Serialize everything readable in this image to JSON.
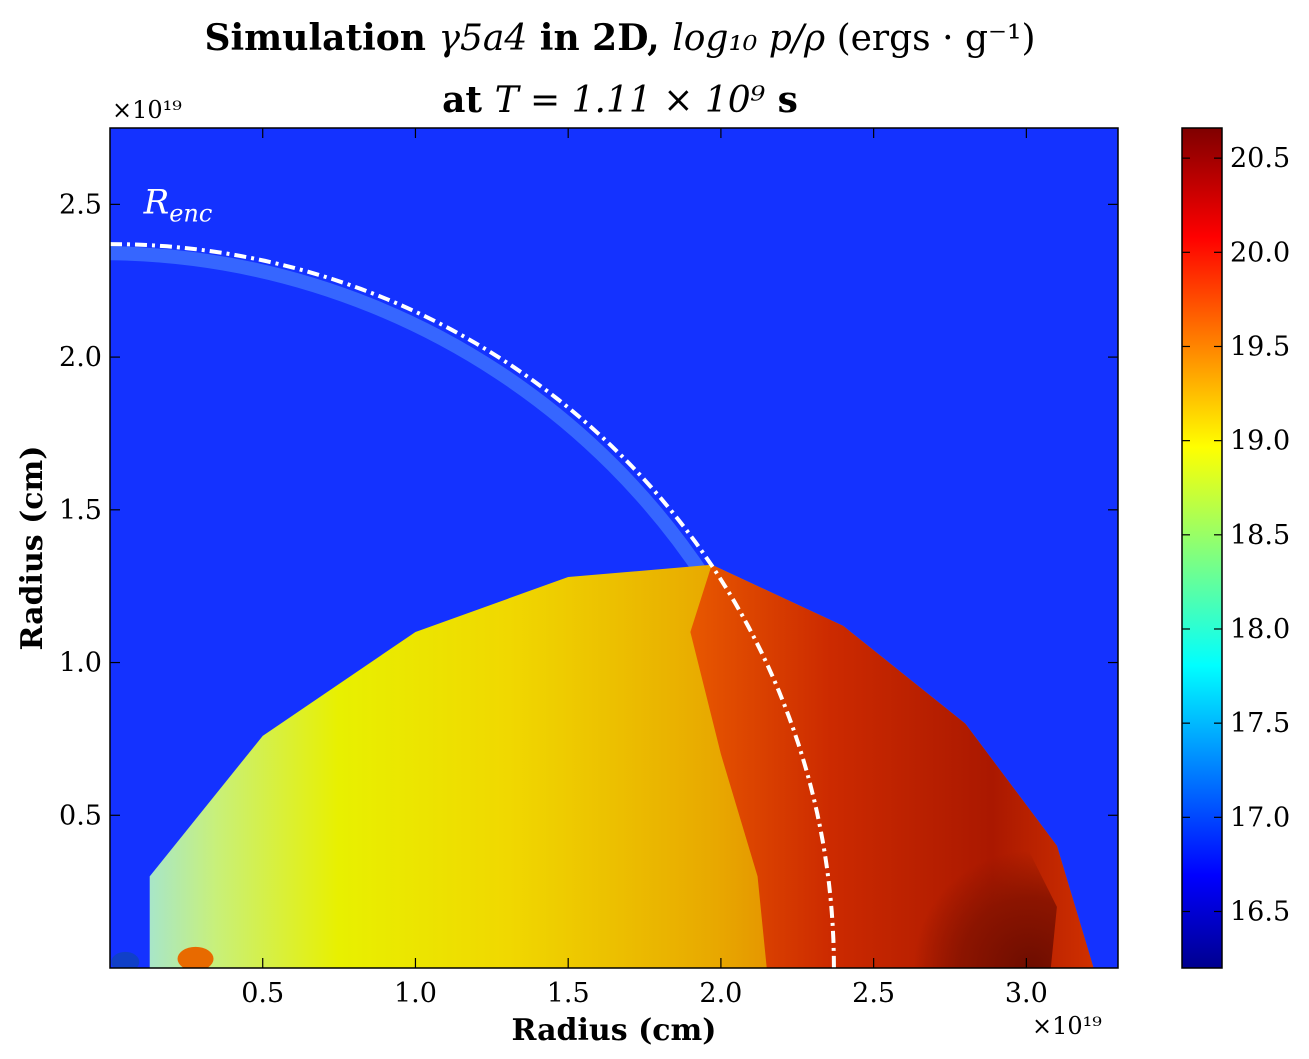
{
  "title": {
    "line1_pre": "Simulation ",
    "line1_sim": "γ5a4",
    "line1_mid": " in 2D, ",
    "line1_quantity": "log₁₀ p/ρ",
    "line1_units": " (ergs · g⁻¹)",
    "line2_pre": "at ",
    "line2_eq": "T = 1.11 × 10⁹",
    "line2_unit": " s"
  },
  "chart_data": {
    "type": "heatmap",
    "xlabel": "Radius (cm)",
    "ylabel": "Radius (cm)",
    "x_multiplier": "×10¹⁹",
    "y_multiplier": "×10¹⁹",
    "xlim": [
      0,
      3.3
    ],
    "ylim": [
      0,
      2.75
    ],
    "xticks": [
      0.5,
      1.0,
      1.5,
      2.0,
      2.5,
      3.0
    ],
    "xtick_labels": [
      "0.5",
      "1.0",
      "1.5",
      "2.0",
      "2.5",
      "3.0"
    ],
    "yticks": [
      0.5,
      1.0,
      1.5,
      2.0,
      2.5
    ],
    "ytick_labels": [
      "0.5",
      "1.0",
      "1.5",
      "2.0",
      "2.5"
    ],
    "background_value": 16.9,
    "enclosing_radius": 2.37,
    "annotation": "R_enc",
    "outer_shock_apex": [
      1.97,
      1.32
    ],
    "outer_shock_front": [
      [
        0.13,
        0.3
      ],
      [
        0.5,
        0.76
      ],
      [
        1.0,
        1.1
      ],
      [
        1.5,
        1.28
      ],
      [
        1.97,
        1.32
      ],
      [
        2.4,
        1.12
      ],
      [
        2.8,
        0.8
      ],
      [
        3.1,
        0.4
      ],
      [
        3.22,
        0.0
      ]
    ],
    "colorbar": {
      "min": 16.2,
      "max": 20.66,
      "ticks": [
        16.5,
        17.0,
        17.5,
        18.0,
        18.5,
        19.0,
        19.5,
        20.0,
        20.5
      ],
      "tick_labels": [
        "16.5",
        "17.0",
        "17.5",
        "18.0",
        "18.5",
        "19.0",
        "19.5",
        "20.0",
        "20.5"
      ],
      "colormap": "jet"
    },
    "colors": {
      "background": "#1432ff",
      "inner_cocoon": "#e8c000",
      "shocked_region": "#d03000",
      "dark_core": "#7a1000"
    }
  }
}
